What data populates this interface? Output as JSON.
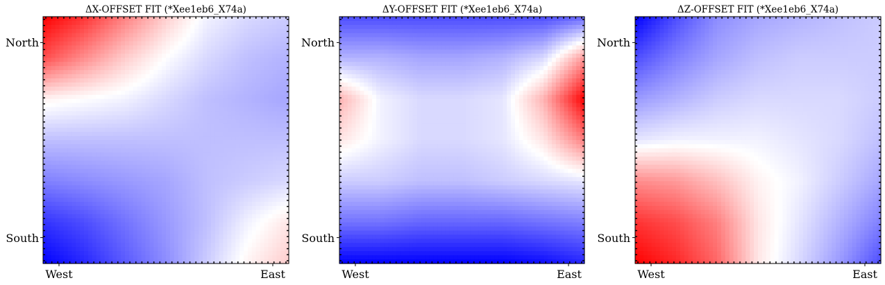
{
  "chart_data": [
    {
      "type": "heatmap",
      "title": "ΔX-OFFSET FIT (*Xee1eb6_X74a)",
      "x_tick_labels": [
        "West",
        "East"
      ],
      "y_tick_labels": [
        "North",
        "South"
      ],
      "colormap": [
        "#0000ff",
        "#ffffff",
        "#ff0000"
      ],
      "grid": [
        [
          1.0,
          0.8,
          0.5,
          0.2,
          -0.05,
          -0.15,
          -0.2
        ],
        [
          0.7,
          0.45,
          0.2,
          0.0,
          -0.15,
          -0.25,
          -0.3
        ],
        [
          0.05,
          0.0,
          -0.05,
          -0.15,
          -0.25,
          -0.3,
          -0.35
        ],
        [
          -0.25,
          -0.25,
          -0.25,
          -0.25,
          -0.25,
          -0.25,
          -0.25
        ],
        [
          -0.5,
          -0.45,
          -0.4,
          -0.35,
          -0.25,
          -0.2,
          -0.15
        ],
        [
          -0.8,
          -0.7,
          -0.55,
          -0.4,
          -0.25,
          -0.05,
          0.1
        ],
        [
          -1.0,
          -0.85,
          -0.65,
          -0.45,
          -0.2,
          0.05,
          0.2
        ]
      ]
    },
    {
      "type": "heatmap",
      "title": "ΔY-OFFSET FIT (*Xee1eb6_X74a)",
      "x_tick_labels": [
        "West",
        "East"
      ],
      "y_tick_labels": [
        "North",
        "South"
      ],
      "colormap": [
        "#0000ff",
        "#ffffff",
        "#ff0000"
      ],
      "grid": [
        [
          -0.7,
          -0.7,
          -0.7,
          -0.7,
          -0.7,
          -0.7,
          -0.6
        ],
        [
          -0.3,
          -0.3,
          -0.35,
          -0.35,
          -0.3,
          -0.15,
          0.4
        ],
        [
          0.3,
          -0.05,
          -0.15,
          -0.15,
          -0.1,
          0.3,
          1.0
        ],
        [
          0.1,
          -0.05,
          -0.15,
          -0.15,
          -0.1,
          0.1,
          0.5
        ],
        [
          -0.2,
          -0.2,
          -0.25,
          -0.25,
          -0.2,
          -0.15,
          -0.1
        ],
        [
          -0.55,
          -0.55,
          -0.6,
          -0.6,
          -0.6,
          -0.55,
          -0.5
        ],
        [
          -1.0,
          -1.0,
          -1.0,
          -1.0,
          -1.0,
          -0.95,
          -0.85
        ]
      ]
    },
    {
      "type": "heatmap",
      "title": "ΔZ-OFFSET FIT (*Xee1eb6_X74a)",
      "x_tick_labels": [
        "West",
        "East"
      ],
      "y_tick_labels": [
        "North",
        "South"
      ],
      "colormap": [
        "#0000ff",
        "#ffffff",
        "#ff0000"
      ],
      "grid": [
        [
          -1.0,
          -0.7,
          -0.45,
          -0.35,
          -0.3,
          -0.25,
          -0.2
        ],
        [
          -0.7,
          -0.5,
          -0.35,
          -0.25,
          -0.2,
          -0.2,
          -0.2
        ],
        [
          -0.4,
          -0.3,
          -0.2,
          -0.15,
          -0.15,
          -0.15,
          -0.2
        ],
        [
          -0.1,
          -0.05,
          -0.05,
          -0.05,
          -0.1,
          -0.15,
          -0.25
        ],
        [
          0.45,
          0.4,
          0.25,
          0.05,
          -0.05,
          -0.2,
          -0.35
        ],
        [
          0.8,
          0.7,
          0.5,
          0.1,
          -0.1,
          -0.3,
          -0.5
        ],
        [
          1.0,
          0.85,
          0.6,
          0.1,
          -0.15,
          -0.4,
          -0.7
        ]
      ]
    }
  ]
}
